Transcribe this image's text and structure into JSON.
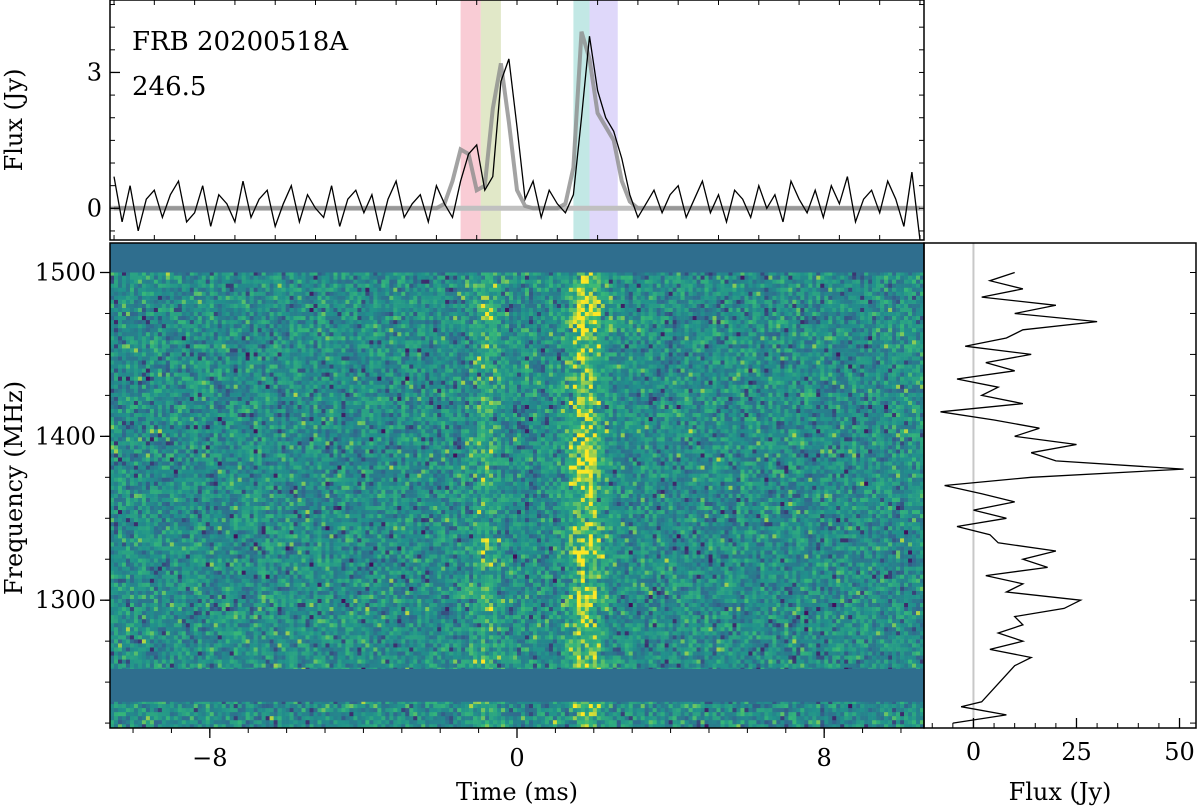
{
  "chart_data": [
    {
      "panel": "timeseries",
      "type": "line",
      "title": "",
      "annotations": [
        "FRB 20200518A",
        "246.5"
      ],
      "xlabel": "",
      "ylabel": "Flux (Jy)",
      "xlim": [
        -10.1,
        10.1
      ],
      "ylim": [
        -0.7,
        4.6
      ],
      "yticks": [
        0,
        3
      ],
      "ytick_labels": [
        "0",
        "3"
      ],
      "series": [
        {
          "role": "data",
          "color": "#000000",
          "x": [
            -10.0,
            -9.8,
            -9.6,
            -9.4,
            -9.2,
            -9.0,
            -8.8,
            -8.6,
            -8.4,
            -8.2,
            -8.0,
            -7.8,
            -7.6,
            -7.4,
            -7.2,
            -7.0,
            -6.8,
            -6.6,
            -6.4,
            -6.2,
            -6.0,
            -5.8,
            -5.6,
            -5.4,
            -5.2,
            -5.0,
            -4.8,
            -4.6,
            -4.4,
            -4.2,
            -4.0,
            -3.8,
            -3.6,
            -3.4,
            -3.2,
            -3.0,
            -2.8,
            -2.6,
            -2.4,
            -2.2,
            -2.0,
            -1.8,
            -1.6,
            -1.4,
            -1.2,
            -1.0,
            -0.8,
            -0.6,
            -0.4,
            -0.2,
            0.0,
            0.2,
            0.4,
            0.6,
            0.8,
            1.0,
            1.2,
            1.4,
            1.6,
            1.8,
            2.0,
            2.2,
            2.4,
            2.6,
            2.8,
            3.0,
            3.2,
            3.4,
            3.6,
            3.8,
            4.0,
            4.2,
            4.4,
            4.6,
            4.8,
            5.0,
            5.2,
            5.4,
            5.6,
            5.8,
            6.0,
            6.2,
            6.4,
            6.6,
            6.8,
            7.0,
            7.2,
            7.4,
            7.6,
            7.8,
            8.0,
            8.2,
            8.4,
            8.6,
            8.8,
            9.0,
            9.2,
            9.4,
            9.6,
            9.8,
            10.0
          ],
          "y": [
            0.7,
            -0.3,
            0.5,
            -0.5,
            0.2,
            0.4,
            -0.2,
            0.3,
            0.6,
            -0.3,
            -0.1,
            0.5,
            -0.4,
            0.3,
            0.1,
            -0.3,
            0.6,
            -0.2,
            0.2,
            0.4,
            -0.4,
            0.1,
            0.5,
            -0.3,
            0.3,
            0.0,
            -0.2,
            0.5,
            -0.4,
            0.2,
            0.4,
            -0.1,
            0.3,
            -0.5,
            0.2,
            0.6,
            -0.2,
            0.1,
            0.3,
            -0.3,
            0.5,
            0.1,
            -0.2,
            0.6,
            1.2,
            1.4,
            0.4,
            0.7,
            2.8,
            3.3,
            1.8,
            0.2,
            0.6,
            -0.2,
            0.4,
            0.1,
            -0.1,
            0.3,
            2.0,
            3.8,
            2.6,
            2.0,
            1.7,
            1.1,
            0.3,
            -0.2,
            0.1,
            0.4,
            -0.1,
            0.3,
            0.5,
            -0.2,
            0.2,
            0.6,
            -0.1,
            0.3,
            -0.3,
            0.4,
            0.2,
            -0.2,
            0.5,
            0.0,
            0.3,
            -0.3,
            0.6,
            0.2,
            -0.1,
            0.4,
            -0.2,
            0.5,
            0.1,
            0.7,
            -0.3,
            0.2,
            0.4,
            -0.1,
            0.6,
            0.2,
            -0.4,
            0.8,
            -0.7
          ]
        },
        {
          "role": "model",
          "color": "#8c8c8c",
          "x": [
            -10.0,
            -2.0,
            -1.8,
            -1.6,
            -1.4,
            -1.2,
            -1.0,
            -0.8,
            -0.6,
            -0.4,
            -0.2,
            0.0,
            0.2,
            0.4,
            1.0,
            1.2,
            1.4,
            1.6,
            1.8,
            2.0,
            2.2,
            2.4,
            2.6,
            2.8,
            3.0,
            3.2,
            10.0
          ],
          "y": [
            0.0,
            0.0,
            0.1,
            0.6,
            1.3,
            1.2,
            0.4,
            0.5,
            2.2,
            3.2,
            1.9,
            0.4,
            0.05,
            0.0,
            0.0,
            0.1,
            0.9,
            3.9,
            3.3,
            2.1,
            1.8,
            1.5,
            0.6,
            0.15,
            0.0,
            0.0,
            0.0
          ]
        }
      ],
      "bands": [
        {
          "x0": -1.4,
          "x1": -0.9,
          "color": "#f4a3b3"
        },
        {
          "x0": -0.9,
          "x1": -0.4,
          "color": "#c9d69b"
        },
        {
          "x0": 1.4,
          "x1": 1.8,
          "color": "#8fd6cf"
        },
        {
          "x0": 1.8,
          "x1": 2.5,
          "color": "#c4b8f5"
        }
      ]
    },
    {
      "panel": "dynamic_spectrum",
      "type": "heatmap",
      "title": "",
      "xlabel": "Time (ms)",
      "ylabel": "Frequency (MHz)",
      "xlim": [
        -10.6,
        10.6
      ],
      "ylim": [
        1222,
        1518
      ],
      "xticks": [
        -8,
        0,
        8
      ],
      "xtick_labels": [
        "−8",
        "0",
        "8"
      ],
      "yticks": [
        1300,
        1400,
        1500
      ],
      "ytick_labels": [
        "1300",
        "1400",
        "1500"
      ],
      "colormap": [
        "#440154",
        "#31688e",
        "#21918c",
        "#35b779",
        "#fde725"
      ],
      "flagged_color": "#2f6e8e",
      "flagged_bands_mhz": [
        [
          1500,
          1518
        ],
        [
          1238,
          1258
        ]
      ],
      "signal_components": [
        {
          "time_ms": -0.8,
          "width_ms": 0.25,
          "amplitude": 0.45
        },
        {
          "time_ms": 1.8,
          "width_ms": 0.3,
          "amplitude": 0.9
        }
      ],
      "bright_frequencies_mhz": [
        1300,
        1330,
        1380,
        1395,
        1470,
        1480
      ]
    },
    {
      "panel": "spectrum",
      "type": "line",
      "title": "",
      "xlabel": "Flux (Jy)",
      "ylabel": "",
      "xlim": [
        -12,
        54
      ],
      "xticks": [
        0,
        25,
        50
      ],
      "xtick_labels": [
        "0",
        "25",
        "50"
      ],
      "zero_line_color": "#c8c8c8",
      "freq": [
        1225,
        1230,
        1235,
        1238,
        1260,
        1265,
        1270,
        1275,
        1280,
        1285,
        1290,
        1295,
        1300,
        1305,
        1310,
        1315,
        1320,
        1325,
        1330,
        1335,
        1340,
        1345,
        1350,
        1355,
        1360,
        1365,
        1370,
        1375,
        1380,
        1385,
        1390,
        1395,
        1400,
        1405,
        1410,
        1415,
        1420,
        1425,
        1430,
        1435,
        1440,
        1445,
        1450,
        1455,
        1460,
        1465,
        1470,
        1475,
        1480,
        1485,
        1490,
        1495,
        1500
      ],
      "flux": [
        -5,
        8,
        -3,
        2,
        10,
        14,
        4,
        12,
        6,
        12,
        10,
        22,
        26,
        8,
        12,
        3,
        18,
        12,
        20,
        6,
        4,
        -4,
        8,
        0,
        10,
        2,
        -7,
        14,
        51,
        20,
        14,
        25,
        10,
        16,
        5,
        -8,
        12,
        2,
        6,
        -4,
        10,
        3,
        14,
        -2,
        8,
        12,
        30,
        10,
        20,
        2,
        12,
        4,
        10
      ]
    }
  ]
}
